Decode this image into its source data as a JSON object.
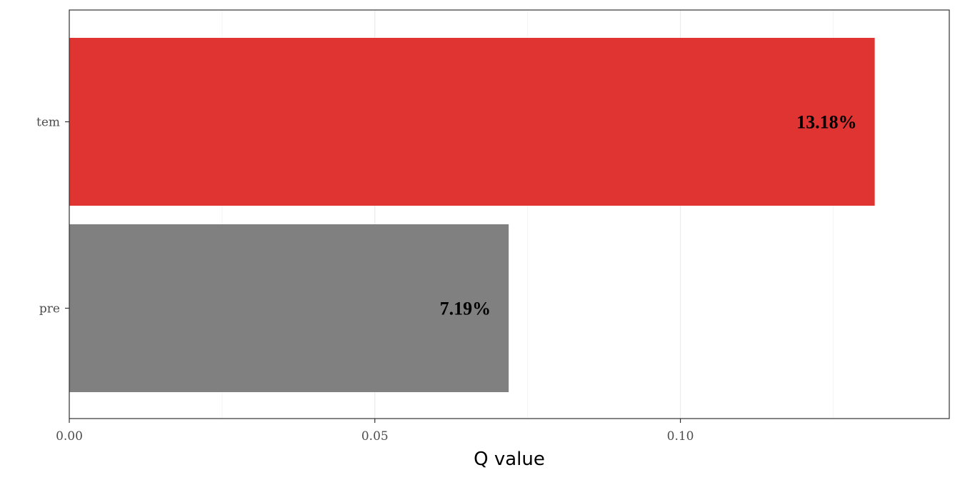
{
  "chart_data": {
    "type": "bar",
    "orientation": "horizontal",
    "title": "",
    "xlabel": "Q value",
    "ylabel": "",
    "xlim": [
      0,
      0.144
    ],
    "x_ticks": [
      {
        "value": 0.0,
        "label": "0.00"
      },
      {
        "value": 0.05,
        "label": "0.05"
      },
      {
        "value": 0.1,
        "label": "0.10"
      }
    ],
    "x_minor_gridlines": [
      0.025,
      0.075,
      0.125
    ],
    "grid": true,
    "legend": "none",
    "bars": [
      {
        "category": "tem",
        "value": 0.1318,
        "label": "13.18%",
        "color": "#E03432"
      },
      {
        "category": "pre",
        "value": 0.0719,
        "label": "7.19%",
        "color": "#808080"
      }
    ]
  }
}
